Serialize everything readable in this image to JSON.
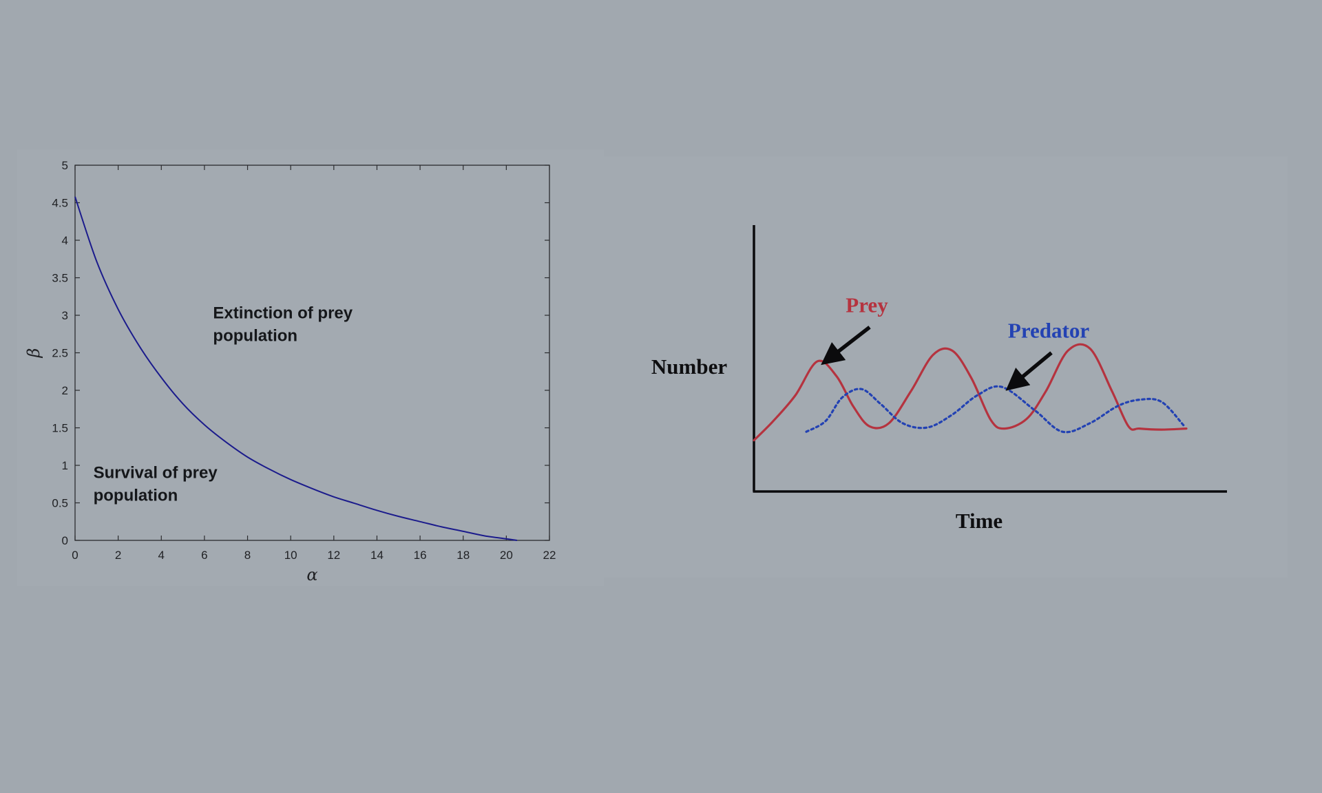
{
  "chart_data": [
    {
      "type": "line",
      "xlabel": "α",
      "ylabel": "β",
      "xlim": [
        0,
        22
      ],
      "ylim": [
        0,
        5
      ],
      "xticks": [
        0,
        2,
        4,
        6,
        8,
        10,
        12,
        14,
        16,
        18,
        20,
        22
      ],
      "yticks": [
        0,
        0.5,
        1,
        1.5,
        2,
        2.5,
        3,
        3.5,
        4,
        4.5,
        5
      ],
      "grid": false,
      "series": [
        {
          "color": "#1b1b8c",
          "x": [
            0,
            1,
            2,
            3,
            4,
            5,
            6,
            7,
            8,
            9,
            10,
            11,
            12,
            13,
            14,
            15,
            16,
            17,
            18,
            19,
            20,
            20.5
          ],
          "y": [
            4.58,
            3.72,
            3.08,
            2.58,
            2.17,
            1.82,
            1.54,
            1.31,
            1.11,
            0.95,
            0.81,
            0.69,
            0.58,
            0.49,
            0.4,
            0.32,
            0.25,
            0.18,
            0.12,
            0.06,
            0.02,
            0.0
          ]
        }
      ],
      "annotations": [
        {
          "lines": [
            "Extinction of prey",
            "population"
          ],
          "x": 6.4,
          "y": 2.96
        },
        {
          "lines": [
            "Survival of prey",
            "population"
          ],
          "x": 0.85,
          "y": 0.83
        }
      ]
    },
    {
      "type": "line",
      "xlabel": "Time",
      "ylabel": "Number",
      "grid": false,
      "series": [
        {
          "name": "Prey",
          "color": "#b5333f",
          "style": "solid",
          "x": [
            0,
            0.35,
            0.75,
            1.15,
            1.5,
            1.8,
            2.1,
            2.45,
            2.85,
            3.25,
            3.6,
            3.95,
            4.3,
            4.55,
            4.95,
            5.3,
            5.7,
            6.1,
            6.5,
            6.8,
            7.0,
            7.4,
            7.85
          ],
          "y": [
            2.4,
            3.3,
            4.5,
            6.1,
            5.4,
            4.0,
            3.05,
            3.2,
            4.7,
            6.4,
            6.6,
            5.3,
            3.35,
            2.95,
            3.4,
            4.7,
            6.6,
            6.7,
            4.7,
            3.05,
            2.95,
            2.9,
            2.95
          ]
        },
        {
          "name": "Predator",
          "color": "#2342b3",
          "style": "dotted",
          "x": [
            0.95,
            1.3,
            1.6,
            1.95,
            2.3,
            2.7,
            3.15,
            3.6,
            4.05,
            4.5,
            5.1,
            5.6,
            6.1,
            6.6,
            7.0,
            7.4,
            7.8
          ],
          "y": [
            2.8,
            3.3,
            4.4,
            4.8,
            4.1,
            3.2,
            3.0,
            3.6,
            4.5,
            4.9,
            3.8,
            2.8,
            3.2,
            4.0,
            4.3,
            4.2,
            3.1
          ]
        }
      ],
      "arrows": [
        {
          "label": "Prey",
          "from": [
            2.1,
            7.7
          ],
          "to": [
            1.35,
            6.2
          ]
        },
        {
          "label": "Predator",
          "from": [
            5.4,
            6.5
          ],
          "to": [
            4.7,
            5.0
          ]
        }
      ]
    }
  ]
}
